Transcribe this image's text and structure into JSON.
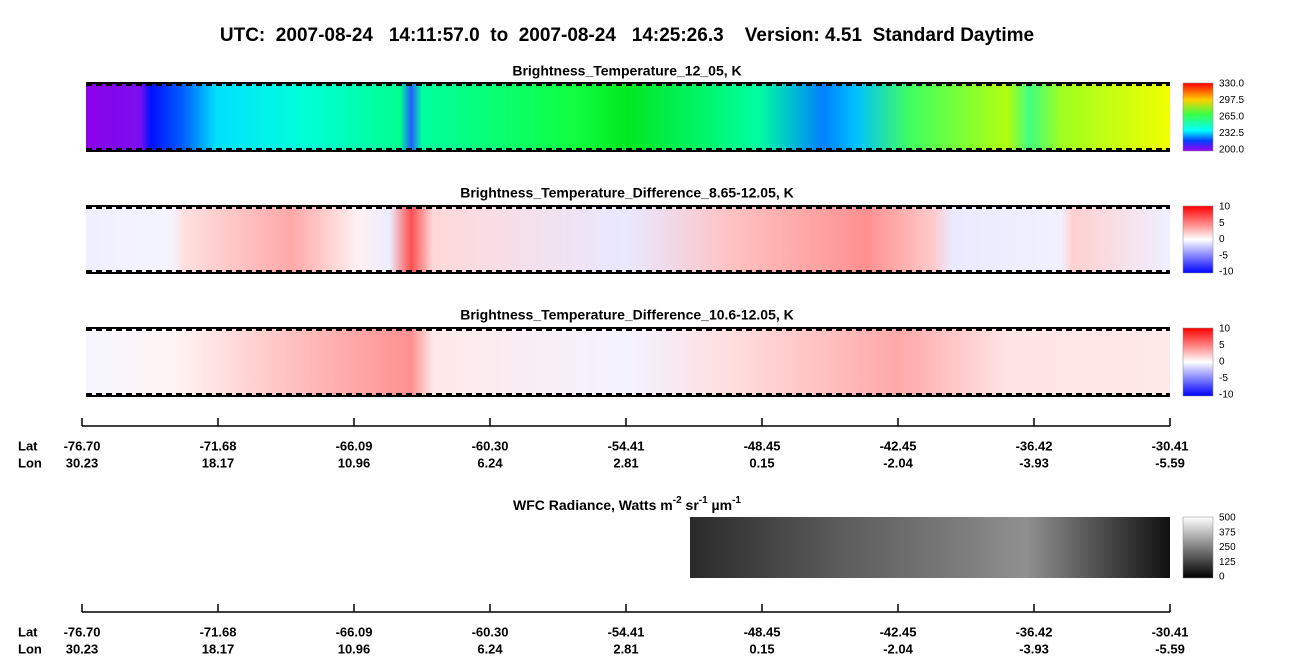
{
  "header": {
    "title": "UTC:  2007-08-24   14:11:57.0  to  2007-08-24   14:25:26.3    Version: 4.51  Standard Daytime"
  },
  "panels": [
    {
      "title": "Brightness_Temperature_12_05, K",
      "colorbar": {
        "ticks": [
          "330.0",
          "297.5",
          "265.0",
          "232.5",
          "200.0"
        ]
      }
    },
    {
      "title": "Brightness_Temperature_Difference_8.65-12.05, K",
      "colorbar": {
        "ticks": [
          "10",
          "5",
          "0",
          "-5",
          "-10"
        ]
      }
    },
    {
      "title": "Brightness_Temperature_Difference_10.6-12.05, K",
      "colorbar": {
        "ticks": [
          "10",
          "5",
          "0",
          "-5",
          "-10"
        ]
      }
    },
    {
      "title_parts": [
        "WFC Radiance, Watts m",
        "-2",
        " sr",
        "-1",
        " µm",
        "-1"
      ],
      "colorbar": {
        "ticks": [
          "500",
          "375",
          "250",
          "125",
          "0"
        ]
      }
    }
  ],
  "axes": [
    {
      "row_labels": [
        "Lat",
        "Lon"
      ],
      "lat": [
        "-76.70",
        "-71.68",
        "-66.09",
        "-60.30",
        "-54.41",
        "-48.45",
        "-42.45",
        "-36.42",
        "-30.41"
      ],
      "lon": [
        "30.23",
        "18.17",
        "10.96",
        "6.24",
        "2.81",
        "0.15",
        "-2.04",
        "-3.93",
        "-5.59"
      ]
    },
    {
      "row_labels": [
        "Lat",
        "Lon"
      ],
      "lat": [
        "-76.70",
        "-71.68",
        "-66.09",
        "-60.30",
        "-54.41",
        "-48.45",
        "-42.45",
        "-36.42",
        "-30.41"
      ],
      "lon": [
        "30.23",
        "18.17",
        "10.96",
        "6.24",
        "2.81",
        "0.15",
        "-2.04",
        "-3.93",
        "-5.59"
      ]
    }
  ]
}
